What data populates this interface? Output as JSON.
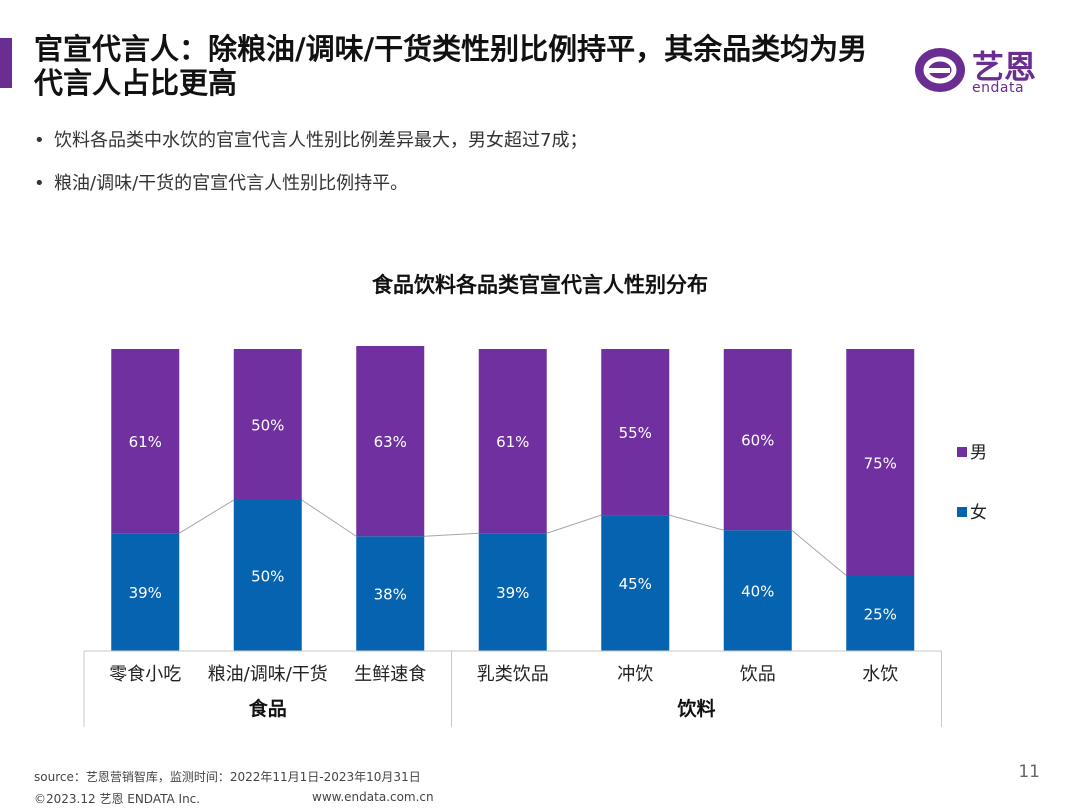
{
  "header": {
    "title": "官宣代言人：除粮油/调味/干货类性别比例持平，其余品类均为男代言人占比更高",
    "logo_text": "艺恩",
    "logo_sub": "endata"
  },
  "bullets": [
    "饮料各品类中水饮的官宣代言人性别比例差异最大，男女超过7成；",
    "粮油/调味/干货的官宣代言人性别比例持平。"
  ],
  "colors": {
    "male": "#7030a0",
    "female": "#0563b0",
    "accent": "#6a2d91",
    "connector": "#a6a6a6"
  },
  "chart_data": {
    "type": "bar",
    "stacked": true,
    "percent": true,
    "title": "食品饮料各品类官宣代言人性别分布",
    "categories": [
      "零食小吃",
      "粮油/调味/干货",
      "生鲜速食",
      "乳类饮品",
      "冲饮",
      "饮品",
      "水饮"
    ],
    "groups": [
      {
        "name": "食品",
        "categories": [
          "零食小吃",
          "粮油/调味/干货",
          "生鲜速食"
        ]
      },
      {
        "name": "饮料",
        "categories": [
          "乳类饮品",
          "冲饮",
          "饮品",
          "水饮"
        ]
      }
    ],
    "series": [
      {
        "name": "女",
        "values": [
          39,
          50,
          38,
          39,
          45,
          40,
          25
        ],
        "labels": [
          "39%",
          "50%",
          "38%",
          "39%",
          "45%",
          "40%",
          "25%"
        ]
      },
      {
        "name": "男",
        "values": [
          61,
          50,
          63,
          61,
          55,
          60,
          75
        ],
        "labels": [
          "61%",
          "50%",
          "63%",
          "61%",
          "55%",
          "60%",
          "75%"
        ]
      }
    ],
    "legend": [
      "男",
      "女"
    ],
    "legend_position": "right",
    "ylim": [
      0,
      100
    ],
    "grid": false
  },
  "footer": {
    "source": "source：艺恩营销智库，监测时间：2022年11月1日-2023年10月31日",
    "copyright": "©2023.12  艺恩 ENDATA Inc.",
    "website": "www.endata.com.cn",
    "page": "11"
  }
}
